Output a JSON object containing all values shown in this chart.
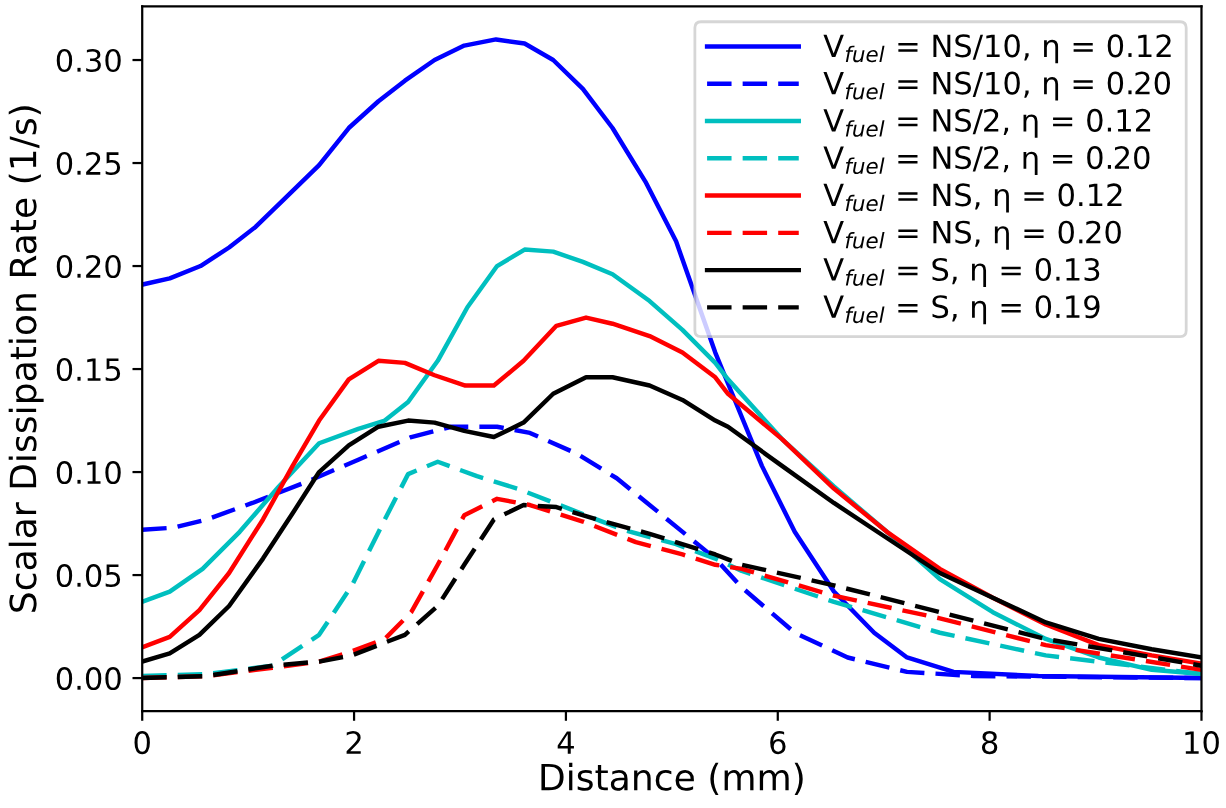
{
  "chart_data": {
    "type": "line",
    "xlabel": "Distance (mm)",
    "ylabel": "Scalar Dissipation Rate (1/s)",
    "xlim": [
      0,
      10
    ],
    "ylim": [
      -0.016,
      0.326
    ],
    "xticks": [
      0,
      2,
      4,
      6,
      8,
      10
    ],
    "yticks": [
      {
        "value": 0,
        "label": "0.00"
      },
      {
        "value": 0.05,
        "label": "0.05"
      },
      {
        "value": 0.1,
        "label": "0.10"
      },
      {
        "value": 0.15,
        "label": "0.15"
      },
      {
        "value": 0.2,
        "label": "0.20"
      },
      {
        "value": 0.25,
        "label": "0.25"
      },
      {
        "value": 0.3,
        "label": "0.30"
      }
    ],
    "grid": false,
    "legend": "top right",
    "series": [
      {
        "name": "V$_{fuel}$ = NS/10, η = 0.12",
        "color": "#0000ff",
        "line_style": "solid",
        "x": [
          0,
          0.26,
          0.55,
          0.82,
          1.07,
          1.35,
          1.67,
          1.95,
          2.23,
          2.48,
          2.76,
          3.04,
          3.34,
          3.61,
          3.88,
          4.16,
          4.44,
          4.75,
          5.04,
          5.41,
          5.53,
          5.85,
          6.16,
          6.53,
          6.91,
          7.22,
          7.66,
          8.46,
          10
        ],
        "values": [
          0.191,
          0.194,
          0.2,
          0.209,
          0.219,
          0.233,
          0.249,
          0.267,
          0.28,
          0.29,
          0.3,
          0.307,
          0.31,
          0.308,
          0.3,
          0.286,
          0.267,
          0.241,
          0.212,
          0.158,
          0.143,
          0.103,
          0.071,
          0.042,
          0.022,
          0.01,
          0.003,
          0.001,
          0
        ]
      },
      {
        "name": "V$_{fuel}$ = NS/10, η = 0.20",
        "color": "#0000ff",
        "line_style": "dashed",
        "x": [
          0,
          0.29,
          0.61,
          1.04,
          1.54,
          2.04,
          2.54,
          2.92,
          3.35,
          3.66,
          4.1,
          4.48,
          4.91,
          5.41,
          5.66,
          6.16,
          6.66,
          7.22,
          7.85,
          10
        ],
        "values": [
          0.072,
          0.073,
          0.077,
          0.085,
          0.095,
          0.106,
          0.117,
          0.122,
          0.122,
          0.119,
          0.109,
          0.097,
          0.079,
          0.058,
          0.044,
          0.022,
          0.01,
          0.003,
          0.001,
          0
        ]
      },
      {
        "name": "V$_{fuel}$ = NS/2, η = 0.12",
        "color": "#00bfbf",
        "line_style": "solid",
        "x": [
          0,
          0.26,
          0.57,
          0.92,
          1.29,
          1.67,
          2.04,
          2.29,
          2.51,
          2.79,
          3.07,
          3.35,
          3.61,
          3.88,
          4.16,
          4.44,
          4.79,
          5.1,
          5.41,
          5.53,
          6.04,
          6.53,
          7.03,
          7.53,
          8.03,
          8.53,
          9.03,
          9.53,
          10
        ],
        "values": [
          0.037,
          0.042,
          0.053,
          0.071,
          0.093,
          0.114,
          0.121,
          0.125,
          0.134,
          0.154,
          0.18,
          0.2,
          0.208,
          0.207,
          0.202,
          0.196,
          0.183,
          0.169,
          0.153,
          0.145,
          0.116,
          0.093,
          0.071,
          0.048,
          0.032,
          0.019,
          0.01,
          0.004,
          0.002
        ]
      },
      {
        "name": "V$_{fuel}$ = NS/2, η = 0.20",
        "color": "#00bfbf",
        "line_style": "dashed",
        "x": [
          0,
          0.61,
          1.23,
          1.67,
          1.98,
          2.29,
          2.51,
          2.79,
          3.16,
          3.54,
          4.04,
          4.54,
          5.04,
          5.41,
          5.66,
          6.53,
          7.53,
          8.53,
          10
        ],
        "values": [
          0.001,
          0.002,
          0.006,
          0.021,
          0.045,
          0.077,
          0.099,
          0.105,
          0.098,
          0.092,
          0.082,
          0.072,
          0.065,
          0.058,
          0.052,
          0.037,
          0.022,
          0.011,
          0.002
        ]
      },
      {
        "name": "V$_{fuel}$ = NS, η = 0.12",
        "color": "#ff0000",
        "line_style": "solid",
        "x": [
          0,
          0.26,
          0.54,
          0.82,
          1.14,
          1.42,
          1.67,
          1.95,
          2.23,
          2.48,
          2.76,
          3.05,
          3.32,
          3.6,
          3.91,
          4.19,
          4.44,
          4.79,
          5.1,
          5.41,
          5.53,
          6.04,
          6.53,
          7.03,
          7.53,
          8.03,
          8.53,
          9.03,
          9.53,
          10
        ],
        "values": [
          0.015,
          0.02,
          0.033,
          0.051,
          0.077,
          0.103,
          0.125,
          0.145,
          0.154,
          0.153,
          0.147,
          0.142,
          0.142,
          0.154,
          0.171,
          0.175,
          0.172,
          0.166,
          0.158,
          0.146,
          0.138,
          0.116,
          0.092,
          0.071,
          0.053,
          0.039,
          0.026,
          0.016,
          0.011,
          0.007
        ]
      },
      {
        "name": "V$_{fuel}$ = NS, η = 0.20",
        "color": "#ff0000",
        "line_style": "dashed",
        "x": [
          0,
          0.61,
          1.23,
          1.67,
          1.98,
          2.29,
          2.54,
          2.79,
          3.04,
          3.35,
          3.66,
          4.16,
          4.66,
          5.1,
          5.41,
          5.66,
          6.53,
          7.53,
          8.53,
          10
        ],
        "values": [
          0,
          0.001,
          0.005,
          0.008,
          0.013,
          0.019,
          0.032,
          0.055,
          0.079,
          0.087,
          0.084,
          0.076,
          0.066,
          0.06,
          0.055,
          0.053,
          0.04,
          0.029,
          0.016,
          0.004
        ]
      },
      {
        "name": "V$_{fuel}$ = S, η = 0.13",
        "color": "#000000",
        "line_style": "solid",
        "x": [
          0,
          0.26,
          0.54,
          0.82,
          1.14,
          1.42,
          1.67,
          1.95,
          2.23,
          2.51,
          2.76,
          3.04,
          3.32,
          3.6,
          3.88,
          4.19,
          4.44,
          4.79,
          5.1,
          5.41,
          5.53,
          6.04,
          6.53,
          7.03,
          7.53,
          8.03,
          8.53,
          9.03,
          9.53,
          10
        ],
        "values": [
          0.008,
          0.012,
          0.021,
          0.035,
          0.058,
          0.08,
          0.1,
          0.113,
          0.122,
          0.125,
          0.124,
          0.12,
          0.117,
          0.124,
          0.138,
          0.146,
          0.146,
          0.142,
          0.135,
          0.125,
          0.122,
          0.103,
          0.085,
          0.068,
          0.051,
          0.039,
          0.027,
          0.019,
          0.014,
          0.01
        ]
      },
      {
        "name": "V$_{fuel}$ = S, η = 0.19",
        "color": "#000000",
        "line_style": "dashed",
        "x": [
          0,
          0.61,
          1.23,
          1.67,
          1.98,
          2.48,
          2.79,
          3.04,
          3.32,
          3.6,
          3.91,
          4.29,
          4.79,
          5.41,
          5.66,
          6.53,
          7.53,
          8.53,
          10
        ],
        "values": [
          0,
          0.001,
          0.006,
          0.008,
          0.011,
          0.021,
          0.035,
          0.055,
          0.077,
          0.084,
          0.083,
          0.077,
          0.07,
          0.06,
          0.055,
          0.045,
          0.032,
          0.019,
          0.006
        ]
      }
    ]
  }
}
